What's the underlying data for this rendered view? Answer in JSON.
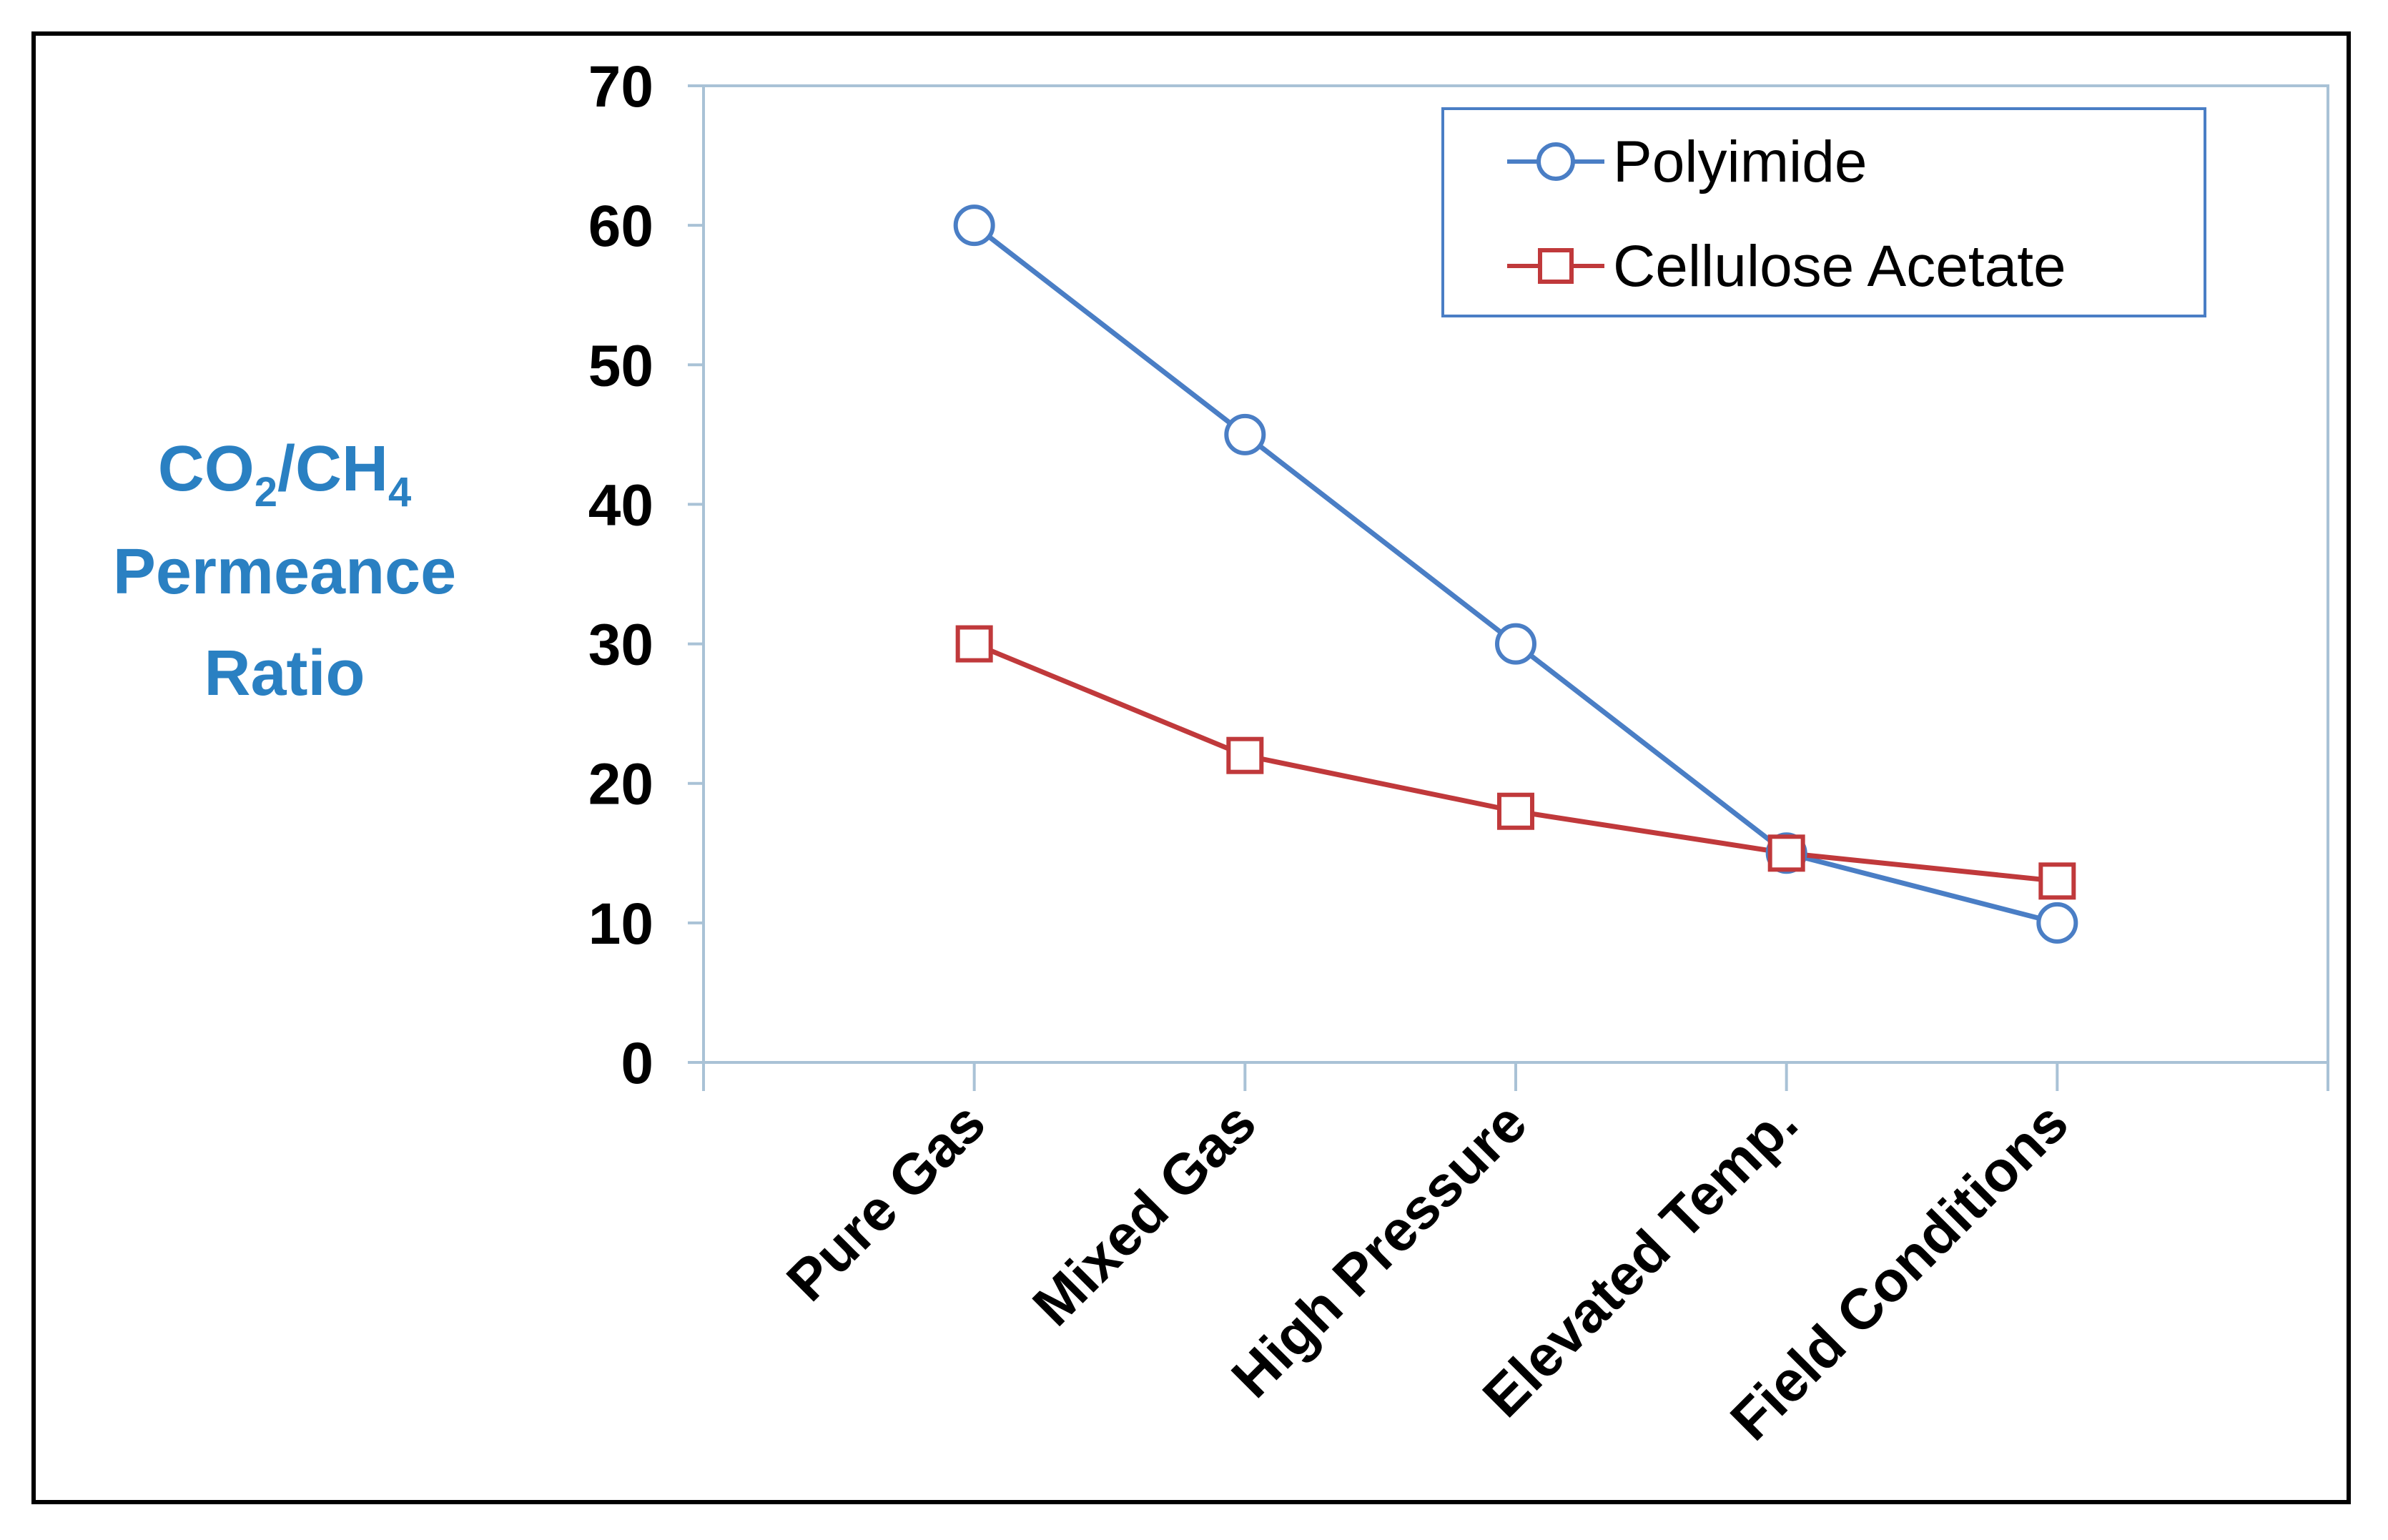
{
  "chart_data": {
    "type": "line",
    "title": "",
    "ylabel": {
      "co2": "CO",
      "co2_sub": "2",
      "slash_ch": "/CH",
      "ch4_sub": "4",
      "line2": "Permeance",
      "line3": "Ratio"
    },
    "xlabel": "",
    "categories": [
      "Pure Gas",
      "Mixed Gas",
      "High Pressure",
      "Elevated Temp.",
      "Field Conditions"
    ],
    "ylim": [
      0,
      70
    ],
    "yticks": [
      0,
      10,
      20,
      30,
      40,
      50,
      60,
      70
    ],
    "grid": false,
    "legend_position": "top-right",
    "series": [
      {
        "name": "Polyimide",
        "marker": "circle",
        "color": "#4a7ec5",
        "values": [
          60,
          45,
          30,
          15,
          10
        ]
      },
      {
        "name": "Cellulose Acetate",
        "marker": "square",
        "color": "#c0393b",
        "values": [
          30,
          22,
          18,
          15,
          13
        ]
      }
    ]
  },
  "colors": {
    "axis": "#a9c2d6",
    "ylabel": "#2a80c2",
    "frame": "#000000"
  }
}
